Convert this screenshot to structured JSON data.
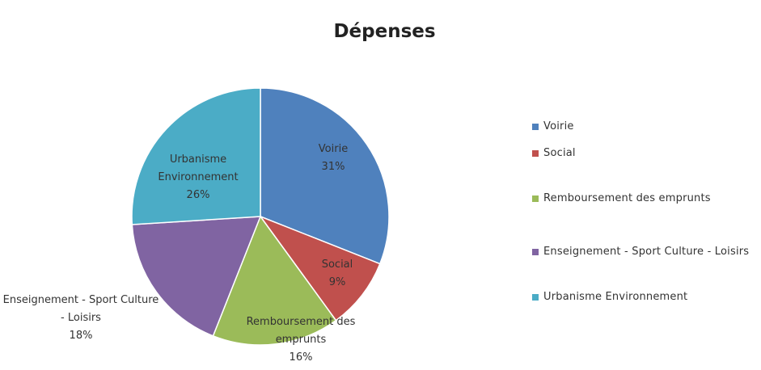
{
  "chart_data": {
    "type": "pie",
    "title": "Dépenses",
    "categories": [
      "Voirie",
      "Social",
      "Remboursement des emprunts",
      "Enseignement - Sport Culture - Loisirs",
      "Urbanisme Environnement"
    ],
    "values": [
      31,
      9,
      16,
      18,
      26
    ],
    "value_labels": [
      "31%",
      "9%",
      "16%",
      "18%",
      "26%"
    ],
    "colors": [
      "#4f81bd",
      "#c0504d",
      "#9bbb59",
      "#8064a2",
      "#4bacc6"
    ],
    "legend": "right"
  }
}
